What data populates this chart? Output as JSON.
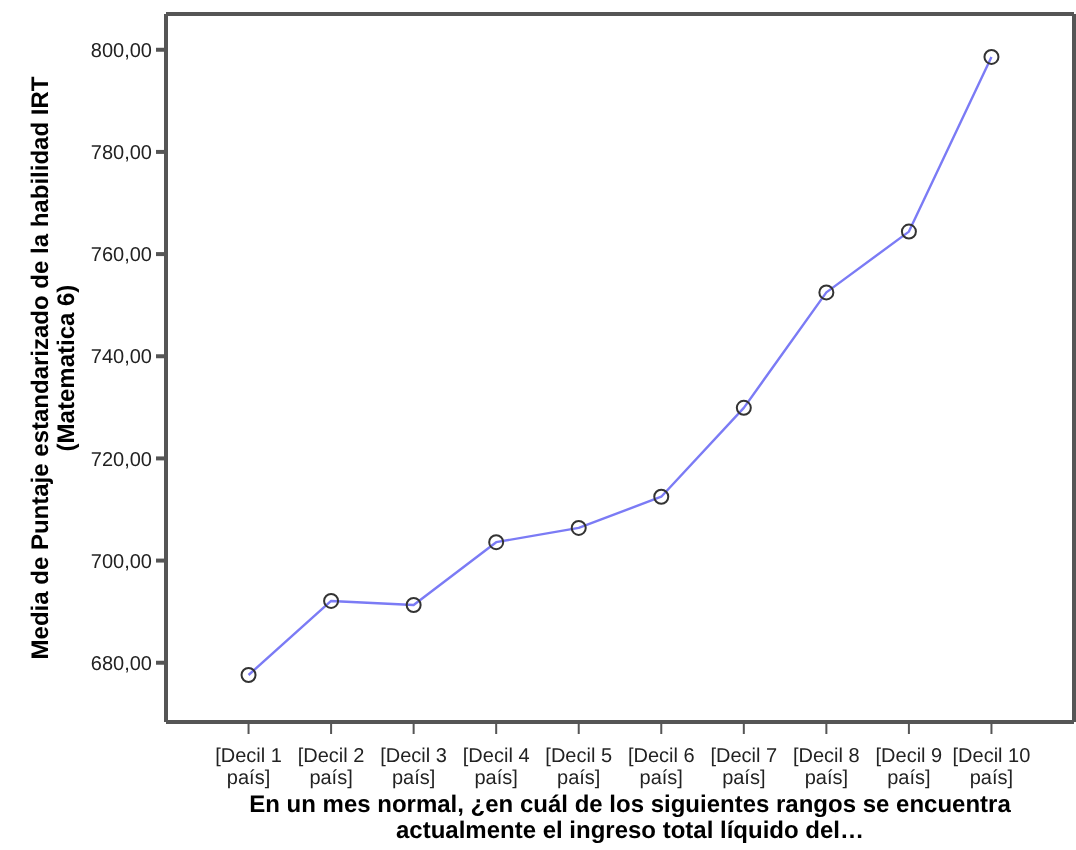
{
  "chart_data": {
    "type": "line",
    "xlabel": "En un mes normal, ¿en cuál de los siguientes rangos se encuentra actualmente el ingreso total líquido del…",
    "ylabel": "Media de Puntaje estandarizado de la habilidad IRT\n(Matematica 6)",
    "categories": [
      "[Decil 1 país]",
      "[Decil 2 país]",
      "[Decil 3 país]",
      "[Decil 4 país]",
      "[Decil 5 país]",
      "[Decil 6 país]",
      "[Decil 7 país]",
      "[Decil 8 país]",
      "[Decil 9 país]",
      "[Decil 10 país]"
    ],
    "series": [
      {
        "color": "#7b7bf5",
        "values": [
          677.6,
          692.1,
          691.3,
          703.6,
          706.4,
          712.5,
          729.9,
          752.5,
          764.4,
          798.6
        ]
      }
    ],
    "ylim": [
      668.4,
      807
    ],
    "yticks": [
      {
        "value": 680,
        "label": "680,00"
      },
      {
        "value": 700,
        "label": "700,00"
      },
      {
        "value": 720,
        "label": "720,00"
      },
      {
        "value": 740,
        "label": "740,00"
      },
      {
        "value": 760,
        "label": "760,00"
      },
      {
        "value": 780,
        "label": "780,00"
      },
      {
        "value": 800,
        "label": "800,00"
      }
    ],
    "grid": false,
    "legend": false,
    "marker": "circle",
    "line_style": "solid"
  }
}
